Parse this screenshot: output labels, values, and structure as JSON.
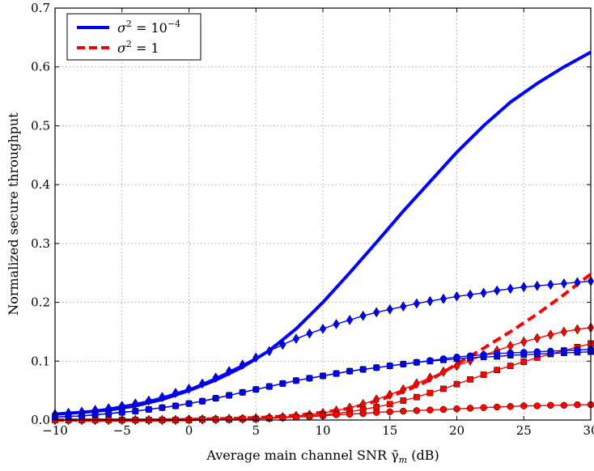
{
  "chart_data": {
    "type": "line",
    "xlabel": "Average main channel SNR γ̄",
    "xlabel_sub": "m",
    "xlabel_unit": " (dB)",
    "ylabel": "Normalized secure throughput",
    "xlim": [
      -10,
      30
    ],
    "ylim": [
      0,
      0.7
    ],
    "x_ticks": [
      -10,
      -5,
      0,
      5,
      10,
      15,
      20,
      25,
      30
    ],
    "x_tick_labels": [
      "−10",
      "−5",
      "0",
      "5",
      "10",
      "15",
      "20",
      "25",
      "30"
    ],
    "y_ticks": [
      0,
      0.1,
      0.2,
      0.3,
      0.4,
      0.5,
      0.6,
      0.7
    ],
    "y_tick_labels": [
      "0.0",
      "0.1",
      "0.2",
      "0.3",
      "0.4",
      "0.5",
      "0.6",
      "0.7"
    ],
    "grid": true,
    "legend_position": "top-left",
    "legend": [
      {
        "prefix": "σ",
        "sup1": "2",
        "mid": " = 10",
        "sup2": "−4",
        "color": "#0000ff",
        "dash": "solid"
      },
      {
        "prefix": "σ",
        "sup1": "2",
        "mid": " = 1",
        "sup2": "",
        "color": "#ff0000",
        "dash": "dashed"
      }
    ],
    "series": [
      {
        "color": "#0000ff",
        "dash": "solid",
        "marker": "none",
        "x": [
          -10,
          -8,
          -6,
          -4,
          -2,
          0,
          2,
          4,
          6,
          8,
          10,
          12,
          14,
          16,
          18,
          20,
          22,
          24,
          26,
          28,
          30
        ],
        "y": [
          0.01,
          0.013,
          0.017,
          0.024,
          0.035,
          0.05,
          0.068,
          0.09,
          0.118,
          0.155,
          0.2,
          0.25,
          0.302,
          0.355,
          0.405,
          0.455,
          0.5,
          0.54,
          0.572,
          0.6,
          0.625
        ]
      },
      {
        "color": "#0000ff",
        "dash": "solid",
        "marker": "diamond",
        "x": [
          -10,
          -9,
          -8,
          -7,
          -6,
          -5,
          -4,
          -3,
          -2,
          -1,
          0,
          1,
          2,
          3,
          4,
          5,
          6,
          7,
          8,
          9,
          10,
          11,
          12,
          13,
          14,
          15,
          16,
          17,
          18,
          19,
          20,
          21,
          22,
          23,
          24,
          25,
          26,
          27,
          28,
          29,
          30
        ],
        "y": [
          0.01,
          0.012,
          0.014,
          0.017,
          0.02,
          0.024,
          0.028,
          0.033,
          0.039,
          0.046,
          0.053,
          0.062,
          0.072,
          0.083,
          0.094,
          0.106,
          0.117,
          0.128,
          0.138,
          0.147,
          0.155,
          0.163,
          0.17,
          0.177,
          0.183,
          0.188,
          0.193,
          0.198,
          0.202,
          0.206,
          0.21,
          0.213,
          0.216,
          0.22,
          0.223,
          0.226,
          0.228,
          0.23,
          0.232,
          0.234,
          0.236
        ]
      },
      {
        "color": "#0000ff",
        "dash": "solid",
        "marker": "square",
        "x": [
          -10,
          -9,
          -8,
          -7,
          -6,
          -5,
          -4,
          -3,
          -2,
          -1,
          0,
          1,
          2,
          3,
          4,
          5,
          6,
          7,
          8,
          9,
          10,
          11,
          12,
          13,
          14,
          15,
          16,
          17,
          18,
          19,
          20,
          21,
          22,
          23,
          24,
          25,
          26,
          27,
          28,
          29,
          30
        ],
        "y": [
          0.005,
          0.006,
          0.007,
          0.009,
          0.011,
          0.013,
          0.015,
          0.018,
          0.021,
          0.024,
          0.028,
          0.032,
          0.037,
          0.042,
          0.047,
          0.052,
          0.057,
          0.062,
          0.067,
          0.071,
          0.075,
          0.079,
          0.083,
          0.086,
          0.089,
          0.092,
          0.095,
          0.098,
          0.1,
          0.102,
          0.104,
          0.106,
          0.107,
          0.108,
          0.11,
          0.111,
          0.112,
          0.113,
          0.114,
          0.115,
          0.116
        ]
      },
      {
        "color": "#0000ff",
        "dash": "solid",
        "marker": "circle",
        "x": [
          -10,
          -9,
          -8,
          -7,
          -6,
          -5,
          -4,
          -3,
          -2,
          -1,
          0,
          1,
          2,
          3,
          4,
          5,
          6,
          7,
          8,
          9,
          10,
          11,
          12,
          13,
          14,
          15,
          16,
          17,
          18,
          19,
          20,
          21,
          22,
          23,
          24,
          25,
          26,
          27,
          28,
          29,
          30
        ],
        "y": [
          0.005,
          0.006,
          0.007,
          0.009,
          0.011,
          0.013,
          0.015,
          0.018,
          0.021,
          0.024,
          0.028,
          0.032,
          0.037,
          0.042,
          0.047,
          0.052,
          0.057,
          0.062,
          0.067,
          0.071,
          0.075,
          0.079,
          0.083,
          0.086,
          0.089,
          0.092,
          0.095,
          0.098,
          0.101,
          0.104,
          0.107,
          0.109,
          0.111,
          0.113,
          0.114,
          0.115,
          0.116,
          0.117,
          0.118,
          0.119,
          0.12
        ]
      },
      {
        "color": "#ff0000",
        "dash": "dashed",
        "marker": "none",
        "x": [
          -10,
          -8,
          -6,
          -4,
          -2,
          0,
          2,
          4,
          6,
          8,
          10,
          12,
          14,
          16,
          18,
          20,
          22,
          24,
          26,
          28,
          30
        ],
        "y": [
          0.0,
          0.0,
          0.0,
          0.0,
          0.0,
          0.001,
          0.002,
          0.003,
          0.005,
          0.008,
          0.013,
          0.02,
          0.032,
          0.048,
          0.068,
          0.095,
          0.122,
          0.15,
          0.18,
          0.213,
          0.248
        ]
      },
      {
        "color": "#ff0000",
        "dash": "solid",
        "marker": "diamond",
        "x": [
          -10,
          -9,
          -8,
          -7,
          -6,
          -5,
          -4,
          -3,
          -2,
          -1,
          0,
          1,
          2,
          3,
          4,
          5,
          6,
          7,
          8,
          9,
          10,
          11,
          12,
          13,
          14,
          15,
          16,
          17,
          18,
          19,
          20,
          21,
          22,
          23,
          24,
          25,
          26,
          27,
          28,
          29,
          30
        ],
        "y": [
          0.0,
          0.0,
          0.0,
          0.0,
          0.0,
          0.0,
          0.0,
          0.0,
          0.0,
          0.0,
          0.001,
          0.001,
          0.001,
          0.002,
          0.002,
          0.003,
          0.004,
          0.005,
          0.007,
          0.009,
          0.012,
          0.016,
          0.021,
          0.027,
          0.035,
          0.043,
          0.052,
          0.062,
          0.072,
          0.082,
          0.092,
          0.101,
          0.11,
          0.118,
          0.126,
          0.133,
          0.139,
          0.145,
          0.15,
          0.154,
          0.157
        ]
      },
      {
        "color": "#ff0000",
        "dash": "solid",
        "marker": "square",
        "x": [
          -10,
          -9,
          -8,
          -7,
          -6,
          -5,
          -4,
          -3,
          -2,
          -1,
          0,
          1,
          2,
          3,
          4,
          5,
          6,
          7,
          8,
          9,
          10,
          11,
          12,
          13,
          14,
          15,
          16,
          17,
          18,
          19,
          20,
          21,
          22,
          23,
          24,
          25,
          26,
          27,
          28,
          29,
          30
        ],
        "y": [
          0.0,
          0.0,
          0.0,
          0.0,
          0.0,
          0.0,
          0.0,
          0.0,
          0.0,
          0.0,
          0.0,
          0.001,
          0.001,
          0.001,
          0.002,
          0.002,
          0.003,
          0.004,
          0.005,
          0.007,
          0.009,
          0.011,
          0.014,
          0.018,
          0.022,
          0.027,
          0.033,
          0.039,
          0.046,
          0.053,
          0.061,
          0.069,
          0.077,
          0.085,
          0.092,
          0.099,
          0.106,
          0.112,
          0.118,
          0.124,
          0.13
        ]
      },
      {
        "color": "#ff0000",
        "dash": "solid",
        "marker": "circle",
        "x": [
          -10,
          -9,
          -8,
          -7,
          -6,
          -5,
          -4,
          -3,
          -2,
          -1,
          0,
          1,
          2,
          3,
          4,
          5,
          6,
          7,
          8,
          9,
          10,
          11,
          12,
          13,
          14,
          15,
          16,
          17,
          18,
          19,
          20,
          21,
          22,
          23,
          24,
          25,
          26,
          27,
          28,
          29,
          30
        ],
        "y": [
          0.0,
          0.0,
          0.0,
          0.0,
          0.0,
          0.0,
          0.0,
          0.0,
          0.0,
          0.0,
          0.0,
          0.001,
          0.001,
          0.001,
          0.002,
          0.002,
          0.003,
          0.004,
          0.005,
          0.006,
          0.007,
          0.009,
          0.01,
          0.011,
          0.013,
          0.014,
          0.015,
          0.016,
          0.017,
          0.018,
          0.019,
          0.02,
          0.021,
          0.022,
          0.023,
          0.024,
          0.024,
          0.025,
          0.025,
          0.026,
          0.026
        ]
      }
    ]
  }
}
